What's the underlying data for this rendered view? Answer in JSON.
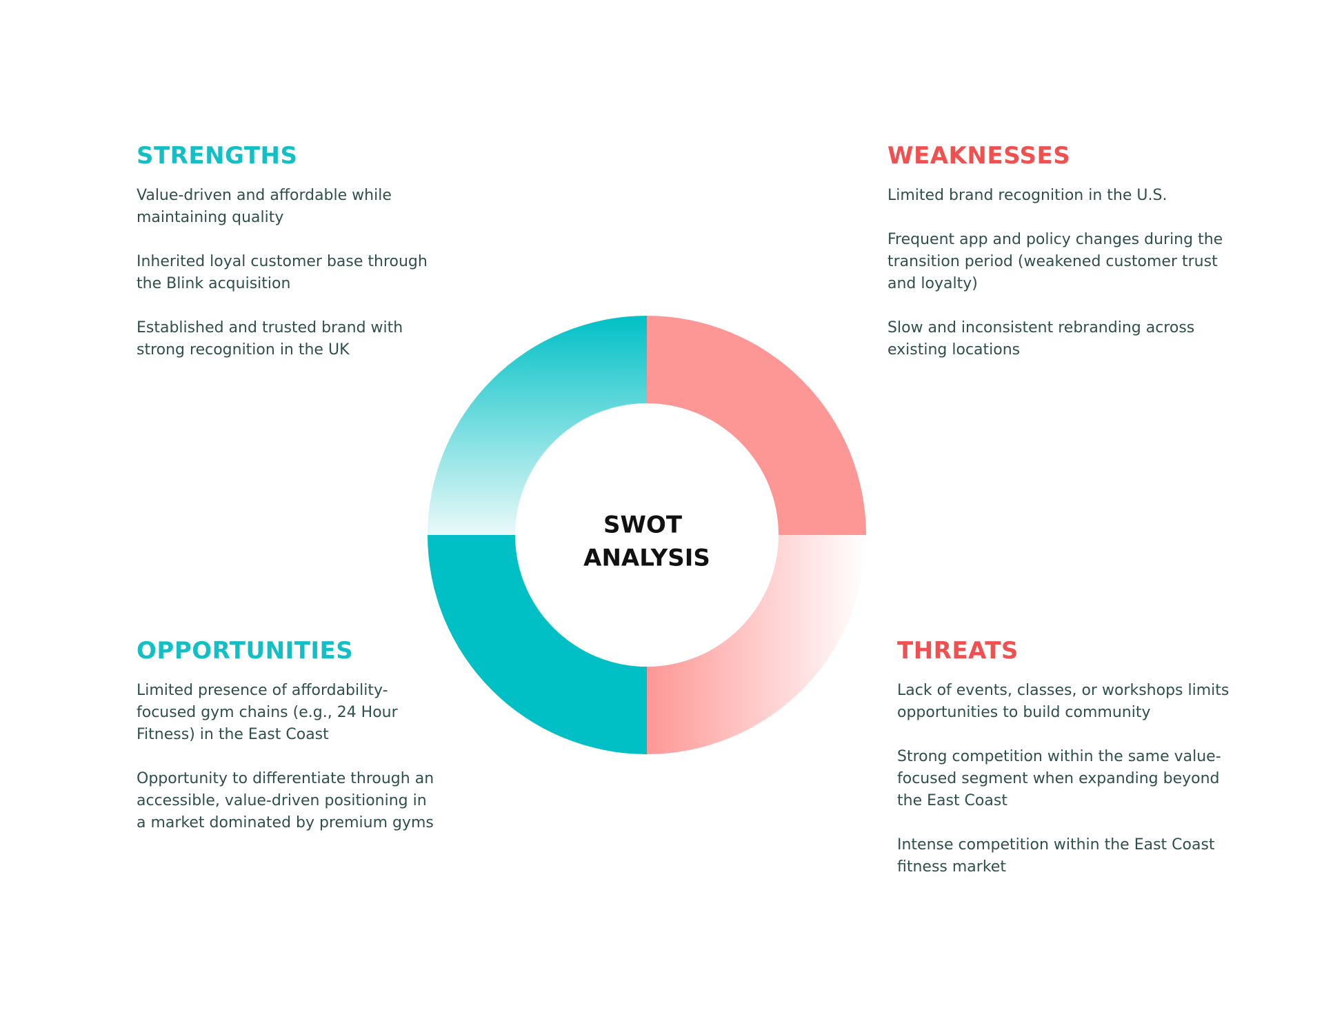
{
  "center": {
    "lines": [
      "SWOT",
      "ANALYSIS"
    ]
  },
  "quadrants": [
    {
      "title": "STRENGTHS",
      "items": [
        "Value-driven and affordable while maintaining quality",
        "Inherited loyal customer base through the Blink acquisition",
        "Established and trusted brand with strong recognition in the UK"
      ]
    },
    {
      "title": "WEAKNESSES",
      "items": [
        "Limited brand recognition in the U.S.",
        "Frequent app and policy changes during the transition period (weakened customer trust and loyalty)",
        "Slow and inconsistent rebranding across existing locations"
      ]
    },
    {
      "title": "OPPORTUNITIES",
      "items": [
        "Limited presence of affordability-focused gym chains (e.g., 24 Hour Fitness) in the East Coast",
        "Opportunity to differentiate through an accessible, value-driven positioning in a market dominated by premium gyms"
      ]
    },
    {
      "title": "THREATS",
      "items": [
        "Lack of events, classes, or workshops limits opportunities to build community",
        "Strong competition within the same value-focused segment when expanding beyond the East Coast",
        "Intense competition within the East Coast fitness market"
      ]
    }
  ]
}
